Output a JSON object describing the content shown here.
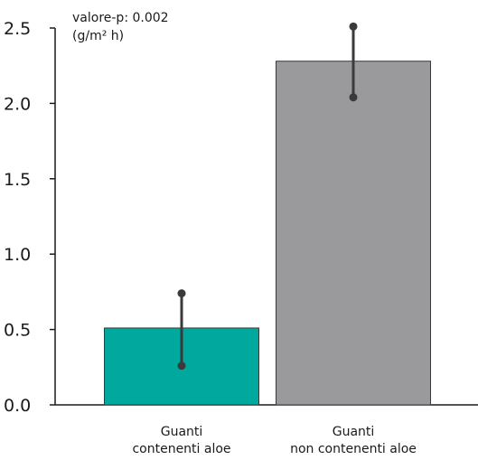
{
  "chart_data": {
    "type": "bar",
    "annotation_pvalue": "valore-p: 0.002",
    "unit_label": "(g/m² h)",
    "ylim": [
      0,
      2.5
    ],
    "yticks": [
      "0.0",
      "0.5",
      "1.0",
      "1.5",
      "2.0",
      "2.5"
    ],
    "ytick_values": [
      0,
      0.5,
      1.0,
      1.5,
      2.0,
      2.5
    ],
    "categories": [
      [
        "Guanti",
        "contenenti aloe"
      ],
      [
        "Guanti",
        "non contenenti aloe"
      ]
    ],
    "values": [
      0.51,
      2.28
    ],
    "error_low": [
      0.26,
      2.04
    ],
    "error_high": [
      0.74,
      2.51
    ],
    "colors": [
      "#00a89d",
      "#9a9a9c"
    ],
    "grid": false,
    "legend": "none"
  }
}
